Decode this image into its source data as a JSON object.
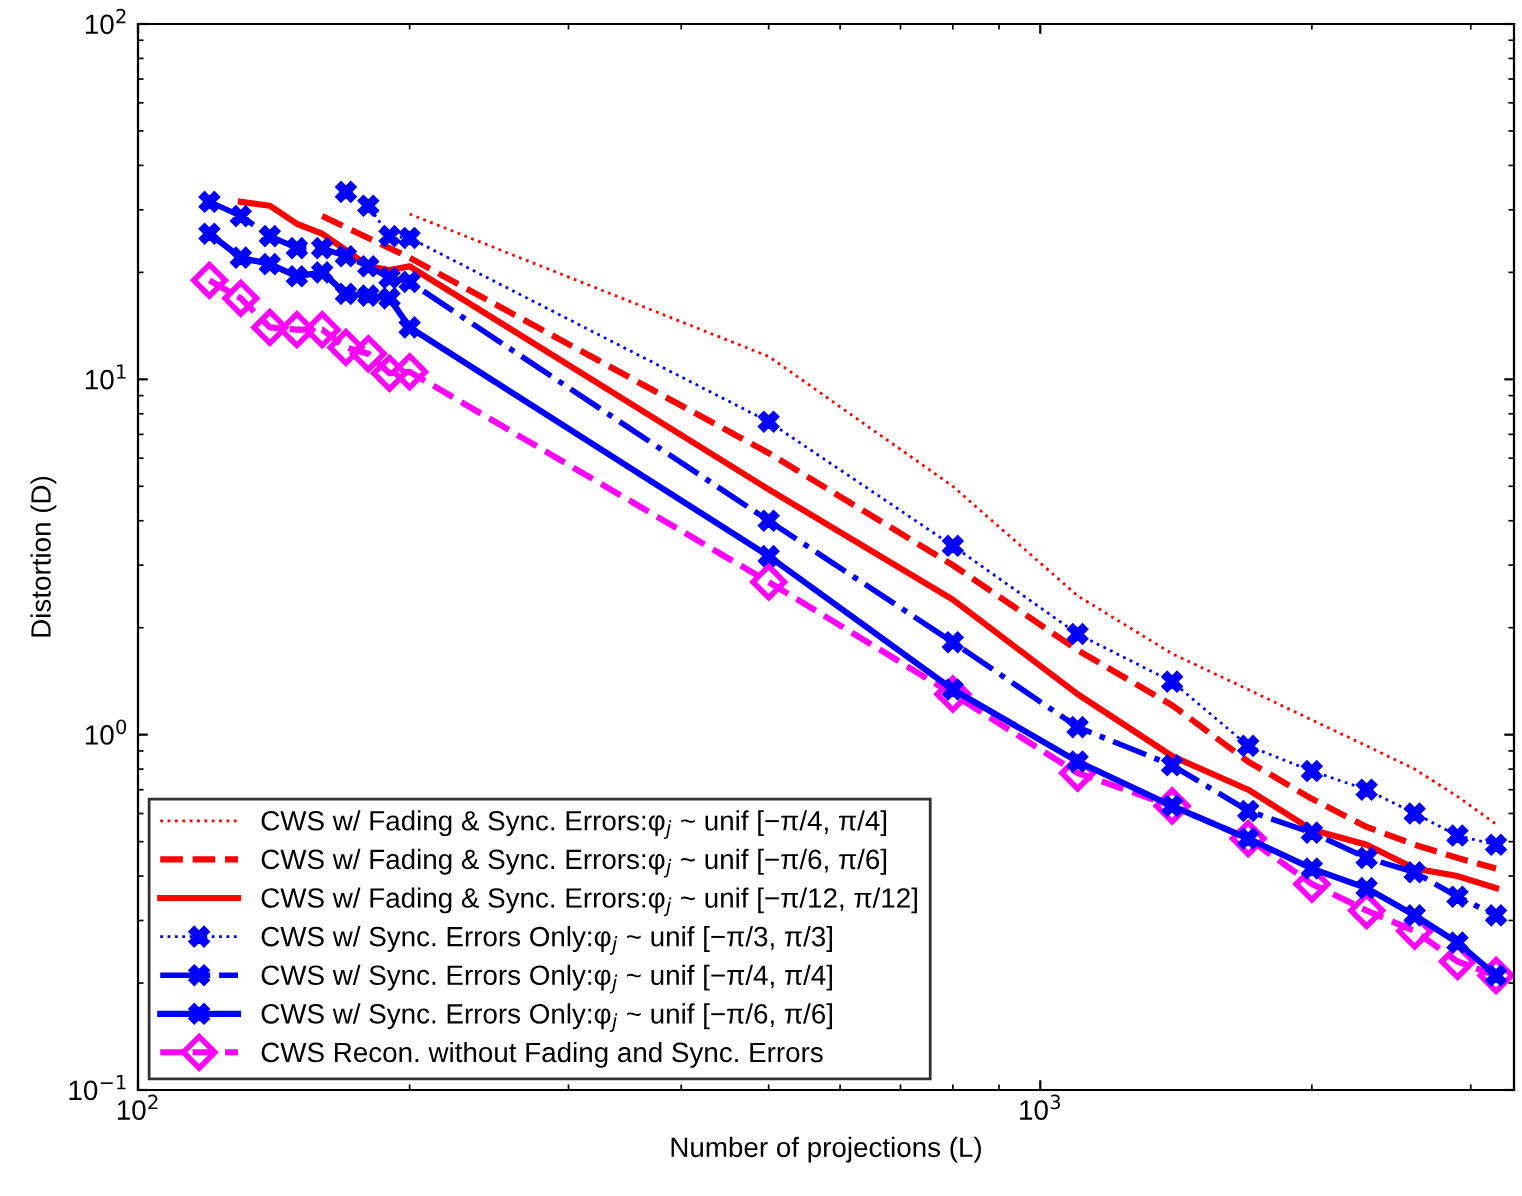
{
  "chart_data": {
    "type": "line",
    "log": "xy",
    "grid": false,
    "legend": "bottom left",
    "xlabel": "Number of projections (L)",
    "ylabel": "Distortion (D)",
    "xlim": [
      100,
      3350
    ],
    "ylim": [
      0.1,
      100
    ],
    "xticks": [
      {
        "value": 100,
        "label": "10$^{2}$"
      },
      {
        "value": 1000,
        "label": "10$^{3}$"
      }
    ],
    "yticks": [
      {
        "value": 0.1,
        "label": "10$^{−1}$"
      },
      {
        "value": 1,
        "label": "10$^{0}$"
      },
      {
        "value": 10,
        "label": "10$^{1}$"
      },
      {
        "value": 100,
        "label": "10$^{2}$"
      }
    ],
    "series": [
      {
        "name": "CWS w/ Fading & Sync. Errors:φ$_{j}$ ~ unif [−π/4, π/4]",
        "color": "#ff0000",
        "line_style": "dotted",
        "marker": "none",
        "x": [
          200,
          500,
          800,
          1100,
          1400,
          1700,
          2000,
          2300,
          2600,
          2900,
          3200
        ],
        "values": [
          29.2,
          11.6,
          5.0,
          2.46,
          1.69,
          1.34,
          1.1,
          0.93,
          0.8,
          0.67,
          0.56
        ]
      },
      {
        "name": "CWS w/ Fading & Sync. Errors:φ$_{j}$ ~ unif [−π/6, π/6]",
        "color": "#ff0000",
        "line_style": "dashed",
        "marker": "none",
        "x": [
          160,
          200,
          500,
          800,
          1100,
          1400,
          1700,
          2000,
          2300,
          2600,
          2900,
          3200
        ],
        "values": [
          28.8,
          22.0,
          6.2,
          3.0,
          1.73,
          1.21,
          0.84,
          0.66,
          0.55,
          0.49,
          0.45,
          0.42
        ]
      },
      {
        "name": "CWS w/ Fading & Sync. Errors:φ$_{j}$ ~ unif [−π/12, π/12]",
        "color": "#ff0000",
        "line_style": "solid",
        "marker": "none",
        "x": [
          130,
          140,
          150,
          160,
          170,
          180,
          190,
          200,
          500,
          800,
          1100,
          1400,
          1700,
          2000,
          2300,
          2600,
          2900,
          3200
        ],
        "values": [
          31.6,
          30.8,
          27.4,
          25.7,
          23.1,
          20.8,
          20.3,
          20.8,
          4.9,
          2.4,
          1.3,
          0.87,
          0.7,
          0.54,
          0.49,
          0.42,
          0.4,
          0.37
        ]
      },
      {
        "name": "CWS w/ Sync. Errors Only:φ$_{j}$ ~ unif [−π/3, π/3]",
        "color": "#0000ff",
        "line_style": "dotted",
        "marker": "cross",
        "x": [
          170,
          180,
          190,
          200,
          500,
          800,
          1100,
          1400,
          1700,
          2000,
          2300,
          2600,
          2900,
          3200
        ],
        "values": [
          33.7,
          30.8,
          25.3,
          25.0,
          7.6,
          3.4,
          1.92,
          1.41,
          0.93,
          0.79,
          0.7,
          0.6,
          0.52,
          0.49
        ]
      },
      {
        "name": "CWS w/ Sync. Errors Only:φ$_{j}$ ~ unif [−π/4, π/4]",
        "color": "#0000ff",
        "line_style": "dashdot",
        "marker": "cross",
        "x": [
          120,
          130,
          140,
          150,
          160,
          170,
          180,
          190,
          200,
          500,
          800,
          1100,
          1400,
          1700,
          2000,
          2300,
          2600,
          2900,
          3200
        ],
        "values": [
          31.6,
          28.8,
          25.3,
          23.4,
          23.4,
          22.2,
          20.8,
          19.3,
          18.8,
          4.0,
          1.82,
          1.05,
          0.82,
          0.61,
          0.53,
          0.45,
          0.41,
          0.35,
          0.31
        ]
      },
      {
        "name": "CWS w/ Sync. Errors Only:φ$_{j}$ ~ unif [−π/6, π/6]",
        "color": "#0000ff",
        "line_style": "solid",
        "marker": "cross",
        "x": [
          120,
          130,
          140,
          150,
          160,
          170,
          180,
          190,
          200,
          500,
          800,
          1100,
          1400,
          1700,
          2000,
          2300,
          2600,
          2900,
          3200
        ],
        "values": [
          25.7,
          22.0,
          21.1,
          19.5,
          20.0,
          17.4,
          17.2,
          16.9,
          14.0,
          3.18,
          1.34,
          0.84,
          0.63,
          0.51,
          0.42,
          0.37,
          0.31,
          0.26,
          0.21
        ]
      },
      {
        "name": "CWS Recon. without Fading and Sync. Errors",
        "color": "#ff00ff",
        "line_style": "dashed",
        "marker": "diamond",
        "x": [
          120,
          130,
          140,
          150,
          160,
          170,
          180,
          190,
          200,
          500,
          800,
          1100,
          1400,
          1700,
          2000,
          2300,
          2600,
          2900,
          3200
        ],
        "values": [
          19.0,
          16.9,
          14.0,
          13.8,
          13.8,
          12.3,
          11.8,
          10.4,
          10.5,
          2.69,
          1.3,
          0.78,
          0.63,
          0.51,
          0.38,
          0.32,
          0.28,
          0.23,
          0.21
        ]
      }
    ]
  }
}
